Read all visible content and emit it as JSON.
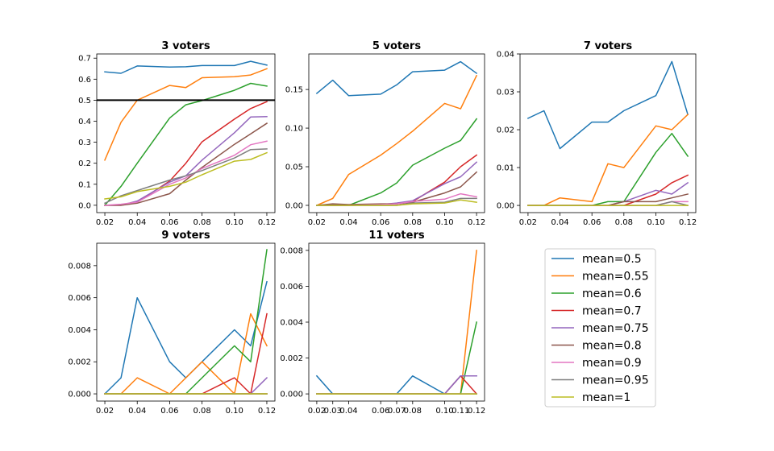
{
  "chart_data": {
    "type": "line",
    "layout": "2x3 grid of line plots sharing one legend in the bottom-right cell",
    "legend": {
      "placement": "bottom-right",
      "entries": [
        "mean=0.5",
        "mean=0.55",
        "mean=0.6",
        "mean=0.7",
        "mean=0.75",
        "mean=0.8",
        "mean=0.9",
        "mean=0.95",
        "mean=1"
      ],
      "colors": [
        "#1f77b4",
        "#ff7f0e",
        "#2ca02c",
        "#d62728",
        "#9467bd",
        "#8c564b",
        "#e377c2",
        "#7f7f7f",
        "#bcbd22"
      ]
    },
    "panels": [
      {
        "title": "3 voters",
        "x": [
          0.02,
          0.03,
          0.04,
          0.06,
          0.07,
          0.08,
          0.1,
          0.11,
          0.12
        ],
        "xticks": [
          "0.02",
          "0.04",
          "0.06",
          "0.08",
          "0.10",
          "0.12"
        ],
        "xlim": [
          0.015,
          0.125
        ],
        "ylim": [
          -0.035,
          0.72
        ],
        "yticks": [
          "0.0",
          "0.1",
          "0.2",
          "0.3",
          "0.4",
          "0.5",
          "0.6",
          "0.7"
        ],
        "reference_line": {
          "y": 0.5,
          "color": "#000000"
        },
        "series": [
          {
            "name": "mean=0.5",
            "values": [
              0.635,
              0.628,
              0.663,
              0.658,
              0.659,
              0.665,
              0.665,
              0.685,
              0.667
            ]
          },
          {
            "name": "mean=0.55",
            "values": [
              0.215,
              0.395,
              0.5,
              0.57,
              0.56,
              0.607,
              0.612,
              0.62,
              0.65
            ]
          },
          {
            "name": "mean=0.6",
            "values": [
              0.0,
              0.09,
              0.2,
              0.415,
              0.478,
              0.498,
              0.547,
              0.58,
              0.567
            ]
          },
          {
            "name": "mean=0.7",
            "values": [
              0.0,
              0.0,
              0.015,
              0.115,
              0.2,
              0.302,
              0.41,
              0.46,
              0.493
            ]
          },
          {
            "name": "mean=0.75",
            "values": [
              0.0,
              0.0,
              0.02,
              0.11,
              0.14,
              0.215,
              0.345,
              0.42,
              0.422
            ]
          },
          {
            "name": "mean=0.8",
            "values": [
              0.0,
              0.0,
              0.01,
              0.055,
              0.12,
              0.18,
              0.29,
              0.34,
              0.39
            ]
          },
          {
            "name": "mean=0.9",
            "values": [
              0.0,
              0.005,
              0.015,
              0.1,
              0.13,
              0.175,
              0.238,
              0.288,
              0.305
            ]
          },
          {
            "name": "mean=0.95",
            "values": [
              0.01,
              0.045,
              0.07,
              0.12,
              0.14,
              0.165,
              0.225,
              0.265,
              0.268
            ]
          },
          {
            "name": "mean=1",
            "values": [
              0.03,
              0.04,
              0.065,
              0.09,
              0.11,
              0.145,
              0.21,
              0.218,
              0.25
            ]
          }
        ]
      },
      {
        "title": "5 voters",
        "x": [
          0.02,
          0.03,
          0.04,
          0.06,
          0.07,
          0.08,
          0.1,
          0.11,
          0.12
        ],
        "xticks": [
          "0.02",
          "0.04",
          "0.06",
          "0.08",
          "0.10",
          "0.12"
        ],
        "xlim": [
          0.015,
          0.125
        ],
        "ylim": [
          -0.0094,
          0.196
        ],
        "yticks": [
          "0.00",
          "0.05",
          "0.10",
          "0.15"
        ],
        "series": [
          {
            "name": "mean=0.5",
            "values": [
              0.145,
              0.162,
              0.142,
              0.144,
              0.156,
              0.173,
              0.175,
              0.186,
              0.171
            ]
          },
          {
            "name": "mean=0.55",
            "values": [
              0.0,
              0.009,
              0.04,
              0.065,
              0.08,
              0.096,
              0.132,
              0.125,
              0.168
            ]
          },
          {
            "name": "mean=0.6",
            "values": [
              0.0,
              0.0,
              0.0,
              0.016,
              0.029,
              0.052,
              0.074,
              0.084,
              0.112
            ]
          },
          {
            "name": "mean=0.7",
            "values": [
              0.0,
              0.0,
              0.0,
              0.001,
              0.002,
              0.005,
              0.03,
              0.05,
              0.065
            ]
          },
          {
            "name": "mean=0.75",
            "values": [
              0.0,
              0.001,
              0.0,
              0.001,
              0.003,
              0.006,
              0.028,
              0.037,
              0.056
            ]
          },
          {
            "name": "mean=0.8",
            "values": [
              0.0,
              0.002,
              0.001,
              0.002,
              0.002,
              0.004,
              0.016,
              0.024,
              0.043
            ]
          },
          {
            "name": "mean=0.9",
            "values": [
              0.0,
              0.0,
              0.0,
              0.001,
              0.002,
              0.005,
              0.008,
              0.015,
              0.011
            ]
          },
          {
            "name": "mean=0.95",
            "values": [
              0.0,
              0.0,
              0.0,
              0.0,
              0.0,
              0.003,
              0.004,
              0.009,
              0.009
            ]
          },
          {
            "name": "mean=1",
            "values": [
              0.0,
              0.0,
              0.0,
              0.0,
              0.0,
              0.002,
              0.003,
              0.007,
              0.004
            ]
          }
        ]
      },
      {
        "title": "7 voters",
        "x": [
          0.02,
          0.03,
          0.04,
          0.06,
          0.07,
          0.08,
          0.1,
          0.11,
          0.12
        ],
        "xticks": [
          "0.02",
          "0.04",
          "0.06",
          "0.08",
          "0.10",
          "0.12"
        ],
        "xlim": [
          0.015,
          0.125
        ],
        "ylim": [
          -0.0019,
          0.04
        ],
        "yticks": [
          "0.00",
          "0.01",
          "0.02",
          "0.03",
          "0.04"
        ],
        "series": [
          {
            "name": "mean=0.5",
            "values": [
              0.023,
              0.025,
              0.015,
              0.022,
              0.022,
              0.025,
              0.029,
              0.038,
              0.024
            ]
          },
          {
            "name": "mean=0.55",
            "values": [
              0.0,
              0.0,
              0.002,
              0.001,
              0.011,
              0.01,
              0.021,
              0.02,
              0.024
            ]
          },
          {
            "name": "mean=0.6",
            "values": [
              0.0,
              0.0,
              0.0,
              0.0,
              0.001,
              0.001,
              0.014,
              0.019,
              0.013
            ]
          },
          {
            "name": "mean=0.7",
            "values": [
              0.0,
              0.0,
              0.0,
              0.0,
              0.0,
              0.0,
              0.003,
              0.006,
              0.008
            ]
          },
          {
            "name": "mean=0.75",
            "values": [
              0.0,
              0.0,
              0.0,
              0.0,
              0.0,
              0.001,
              0.004,
              0.003,
              0.006
            ]
          },
          {
            "name": "mean=0.8",
            "values": [
              0.0,
              0.0,
              0.0,
              0.0,
              0.0,
              0.001,
              0.001,
              0.002,
              0.003
            ]
          },
          {
            "name": "mean=0.9",
            "values": [
              0.0,
              0.0,
              0.0,
              0.0,
              0.0,
              0.0,
              0.0,
              0.001,
              0.001
            ]
          },
          {
            "name": "mean=0.95",
            "values": [
              0.0,
              0.0,
              0.0,
              0.0,
              0.0,
              0.0,
              0.0,
              0.001,
              0.0
            ]
          },
          {
            "name": "mean=1",
            "values": [
              0.0,
              0.0,
              0.0,
              0.0,
              0.0,
              0.0,
              0.0,
              0.0,
              0.0
            ]
          }
        ]
      },
      {
        "title": "9 voters",
        "x": [
          0.02,
          0.03,
          0.04,
          0.06,
          0.07,
          0.08,
          0.1,
          0.11,
          0.12
        ],
        "xticks": [
          "0.02",
          "0.04",
          "0.06",
          "0.08",
          "0.10",
          "0.12"
        ],
        "xlim": [
          0.015,
          0.125
        ],
        "ylim": [
          -0.00045,
          0.0094
        ],
        "yticks": [
          "0.000",
          "0.002",
          "0.004",
          "0.006",
          "0.008"
        ],
        "series": [
          {
            "name": "mean=0.5",
            "values": [
              0.0,
              0.001,
              0.006,
              0.002,
              0.001,
              0.002,
              0.004,
              0.003,
              0.007
            ]
          },
          {
            "name": "mean=0.55",
            "values": [
              0.0,
              0.0,
              0.001,
              0.0,
              0.001,
              0.002,
              0.0,
              0.005,
              0.003
            ]
          },
          {
            "name": "mean=0.6",
            "values": [
              0.0,
              0.0,
              0.0,
              0.0,
              0.0,
              0.001,
              0.003,
              0.002,
              0.009
            ]
          },
          {
            "name": "mean=0.7",
            "values": [
              0.0,
              0.0,
              0.0,
              0.0,
              0.0,
              0.0,
              0.001,
              0.0,
              0.005
            ]
          },
          {
            "name": "mean=0.75",
            "values": [
              0.0,
              0.0,
              0.0,
              0.0,
              0.0,
              0.0,
              0.0,
              0.0,
              0.001
            ]
          },
          {
            "name": "mean=0.8",
            "values": [
              0.0,
              0.0,
              0.0,
              0.0,
              0.0,
              0.0,
              0.0,
              0.0,
              0.0
            ]
          },
          {
            "name": "mean=0.9",
            "values": [
              0.0,
              0.0,
              0.0,
              0.0,
              0.0,
              0.0,
              0.0,
              0.0,
              0.0
            ]
          },
          {
            "name": "mean=0.95",
            "values": [
              0.0,
              0.0,
              0.0,
              0.0,
              0.0,
              0.0,
              0.0,
              0.0,
              0.0
            ]
          },
          {
            "name": "mean=1",
            "values": [
              0.0,
              0.0,
              0.0,
              0.0,
              0.0,
              0.0,
              0.0,
              0.0,
              0.0
            ]
          }
        ]
      },
      {
        "title": "11 voters",
        "x": [
          0.02,
          0.03,
          0.04,
          0.06,
          0.07,
          0.08,
          0.1,
          0.11,
          0.12
        ],
        "xticks": [
          "0.02",
          "0.03",
          "0.04",
          "0.06",
          "0.07",
          "0.08",
          "0.10",
          "0.11",
          "0.12"
        ],
        "xlim": [
          0.015,
          0.125
        ],
        "ylim": [
          -0.0004,
          0.0084
        ],
        "yticks": [
          "0.000",
          "0.002",
          "0.004",
          "0.006",
          "0.008"
        ],
        "series": [
          {
            "name": "mean=0.5",
            "values": [
              0.001,
              0.0,
              0.0,
              0.0,
              0.0,
              0.001,
              0.0,
              0.001,
              0.001
            ]
          },
          {
            "name": "mean=0.55",
            "values": [
              0.0,
              0.0,
              0.0,
              0.0,
              0.0,
              0.0,
              0.0,
              0.0,
              0.008
            ]
          },
          {
            "name": "mean=0.6",
            "values": [
              0.0,
              0.0,
              0.0,
              0.0,
              0.0,
              0.0,
              0.0,
              0.0,
              0.004
            ]
          },
          {
            "name": "mean=0.7",
            "values": [
              0.0,
              0.0,
              0.0,
              0.0,
              0.0,
              0.0,
              0.0,
              0.001,
              0.0
            ]
          },
          {
            "name": "mean=0.75",
            "values": [
              0.0,
              0.0,
              0.0,
              0.0,
              0.0,
              0.0,
              0.0,
              0.001,
              0.001
            ]
          },
          {
            "name": "mean=0.8",
            "values": [
              0.0,
              0.0,
              0.0,
              0.0,
              0.0,
              0.0,
              0.0,
              0.0,
              0.0
            ]
          },
          {
            "name": "mean=0.9",
            "values": [
              0.0,
              0.0,
              0.0,
              0.0,
              0.0,
              0.0,
              0.0,
              0.0,
              0.0
            ]
          },
          {
            "name": "mean=0.95",
            "values": [
              0.0,
              0.0,
              0.0,
              0.0,
              0.0,
              0.0,
              0.0,
              0.0,
              0.0
            ]
          },
          {
            "name": "mean=1",
            "values": [
              0.0,
              0.0,
              0.0,
              0.0,
              0.0,
              0.0,
              0.0,
              0.0,
              0.0
            ]
          }
        ]
      }
    ]
  }
}
